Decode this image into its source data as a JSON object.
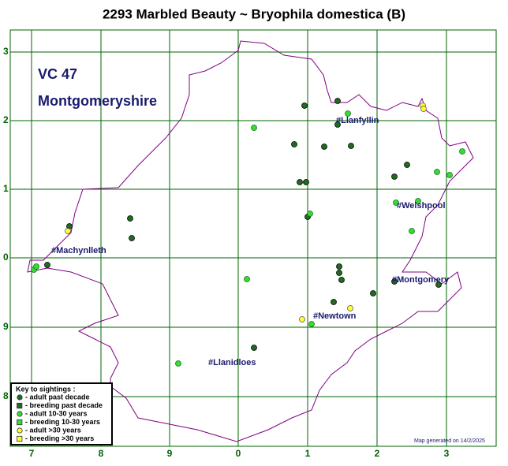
{
  "title": "2293 Marbled Beauty ~ Bryophila domestica (B)",
  "region": {
    "code": "VC 47",
    "name": "Montgomeryshire"
  },
  "grid": {
    "left_labels": [
      "3",
      "2",
      "1",
      "0",
      "9",
      "8"
    ],
    "bottom_labels": [
      "7",
      "8",
      "9",
      "0",
      "1",
      "2",
      "3"
    ]
  },
  "places": [
    "#Llanfyllin",
    "#Welshpool",
    "#Machynlleth",
    "#Montgomery",
    "#Newtown",
    "#Llanidloes"
  ],
  "key": {
    "title": "Key to sightings :",
    "items": [
      "- adult past decade",
      "- breeding past decade",
      "- adult 10-30 years",
      "- breeding 10-30 years",
      "- adult >30 years",
      "- breeding >30 years"
    ]
  },
  "footer": "Map generated on 14/2/2025"
}
